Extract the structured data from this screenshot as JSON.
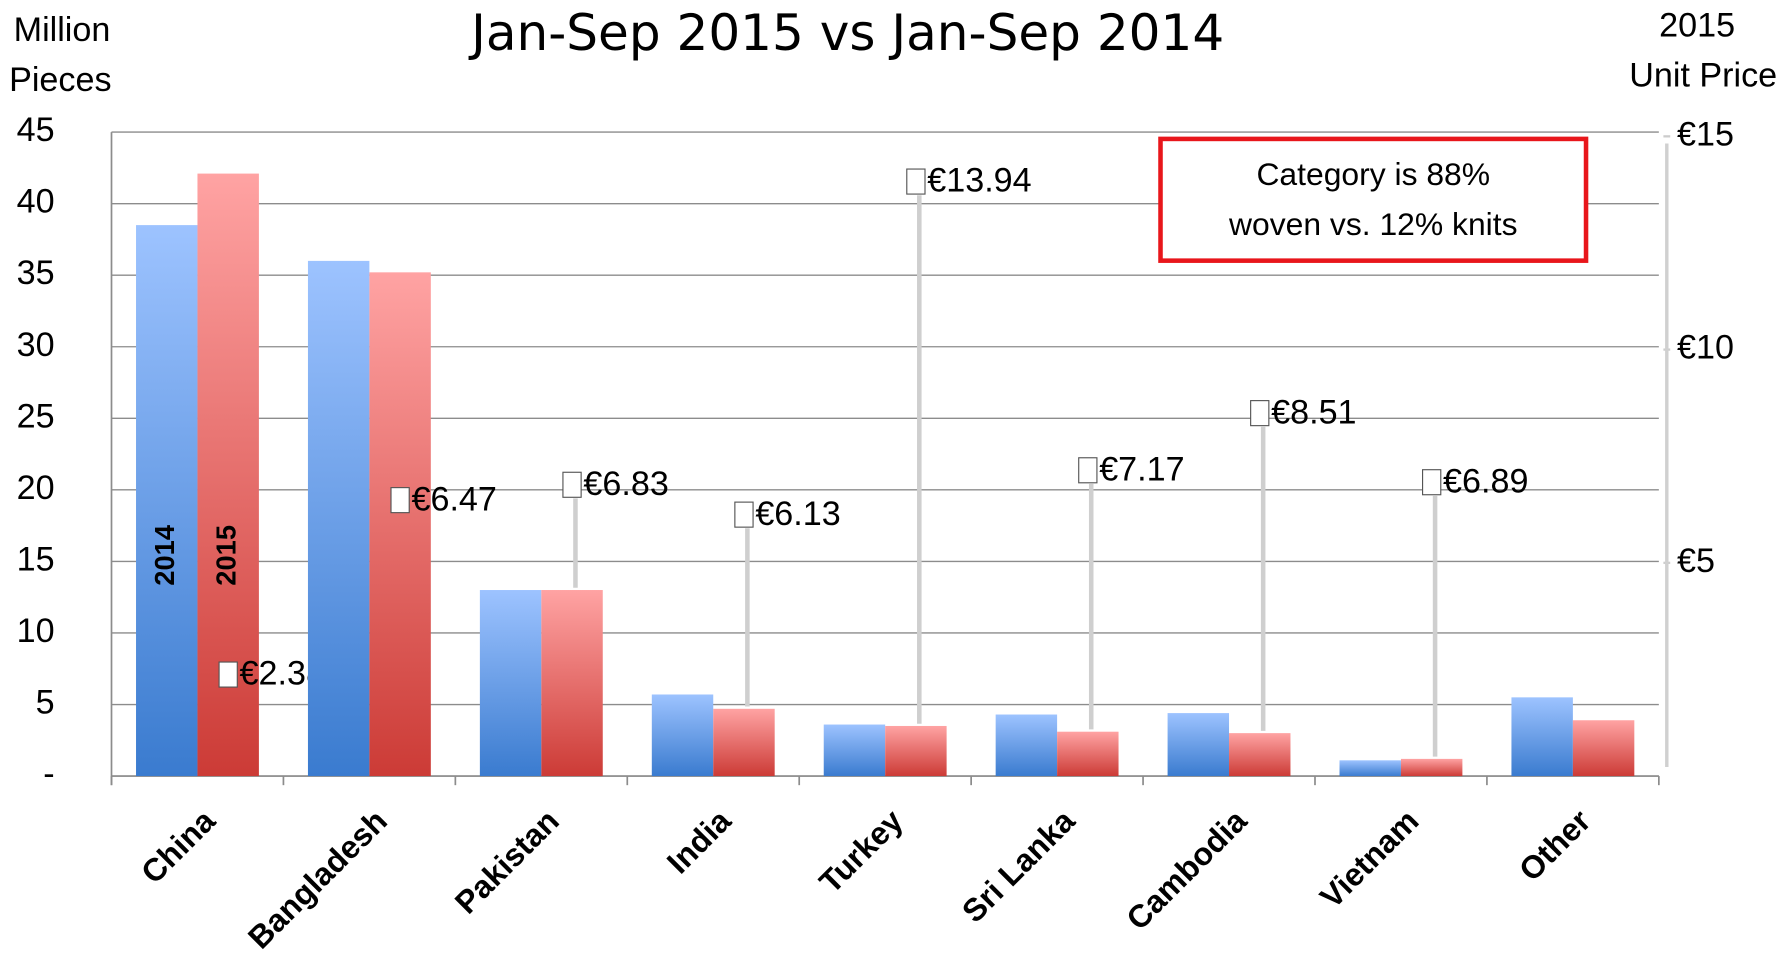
{
  "chart_data": {
    "type": "bar",
    "title": "Jan-Sep 2015  vs Jan-Sep 2014",
    "ylabel": [
      "Million",
      "Pieces"
    ],
    "y2label": [
      "2015",
      "Unit Price"
    ],
    "categories": [
      "China",
      "Bangladesh",
      "Pakistan",
      "India",
      "Turkey",
      "Sri Lanka",
      "Cambodia",
      "Vietnam",
      "Other"
    ],
    "series": [
      {
        "name": "2014",
        "color": [
          "#9dc3ff",
          "#3a7bcf"
        ],
        "values": [
          38.5,
          36.0,
          13.0,
          5.7,
          3.6,
          4.3,
          4.4,
          1.1,
          5.5
        ]
      },
      {
        "name": "2015",
        "color": [
          "#ffa3a3",
          "#cc3b36"
        ],
        "values": [
          42.1,
          35.2,
          13.0,
          4.7,
          3.5,
          3.1,
          3.0,
          1.2,
          3.9
        ]
      }
    ],
    "unit_price": {
      "axis": "y2",
      "values": [
        2.38,
        6.47,
        6.83,
        6.13,
        13.94,
        7.17,
        8.51,
        6.89,
        null
      ],
      "value_labels": [
        "€2.38",
        "€6.47",
        "€6.83",
        "€6.13",
        "€13.94",
        "€7.17",
        "€8.51",
        "€6.89",
        null
      ]
    },
    "ylim": [
      0,
      45
    ],
    "yticks": [
      {
        "value": 0,
        "label": "-"
      },
      5,
      10,
      15,
      20,
      25,
      30,
      35,
      40,
      45
    ],
    "y2lim": [
      0,
      15.1
    ],
    "y2ticks": [
      {
        "value": 5,
        "label": "€5"
      },
      {
        "value": 10,
        "label": "€10"
      },
      {
        "value": 15,
        "label": "€15"
      }
    ],
    "grid": true,
    "annotation": [
      "Category is 88%",
      "woven vs. 12% knits"
    ]
  }
}
